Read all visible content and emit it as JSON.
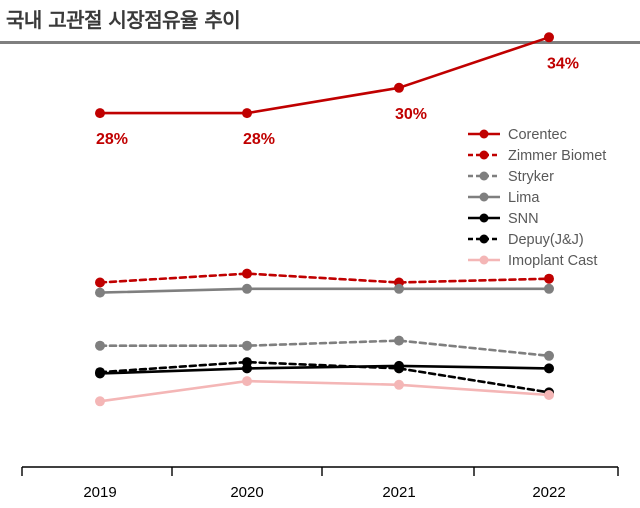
{
  "title": "국내 고관절 시장점유율 추이",
  "chart_data": {
    "type": "line",
    "title": "국내 고관절 시장점유율 추이",
    "categories": [
      "2019",
      "2020",
      "2021",
      "2022"
    ],
    "ylim": [
      0,
      36
    ],
    "grid": false,
    "legend_position": "right",
    "series": [
      {
        "name": "Corentec",
        "values": [
          28,
          28,
          30,
          34
        ],
        "color": "#c00000",
        "dash": false,
        "labels": [
          "28%",
          "28%",
          "30%",
          "34%"
        ]
      },
      {
        "name": "Zimmer Biomet",
        "values": [
          14.6,
          15.3,
          14.6,
          14.9
        ],
        "color": "#c00000",
        "dash": true
      },
      {
        "name": "Stryker",
        "values": [
          9.6,
          9.6,
          10.0,
          8.8
        ],
        "color": "#7f7f7f",
        "dash": true
      },
      {
        "name": "Lima",
        "values": [
          13.8,
          14.1,
          14.1,
          14.1
        ],
        "color": "#7f7f7f",
        "dash": false
      },
      {
        "name": "SNN",
        "values": [
          7.4,
          7.8,
          8.0,
          7.8
        ],
        "color": "#000000",
        "dash": false
      },
      {
        "name": "Depuy(J&J)",
        "values": [
          7.5,
          8.3,
          7.8,
          5.9
        ],
        "color": "#000000",
        "dash": true
      },
      {
        "name": "Imoplant Cast",
        "values": [
          5.2,
          6.8,
          6.5,
          5.7
        ],
        "color": "#f4b6b6",
        "dash": false
      }
    ]
  }
}
